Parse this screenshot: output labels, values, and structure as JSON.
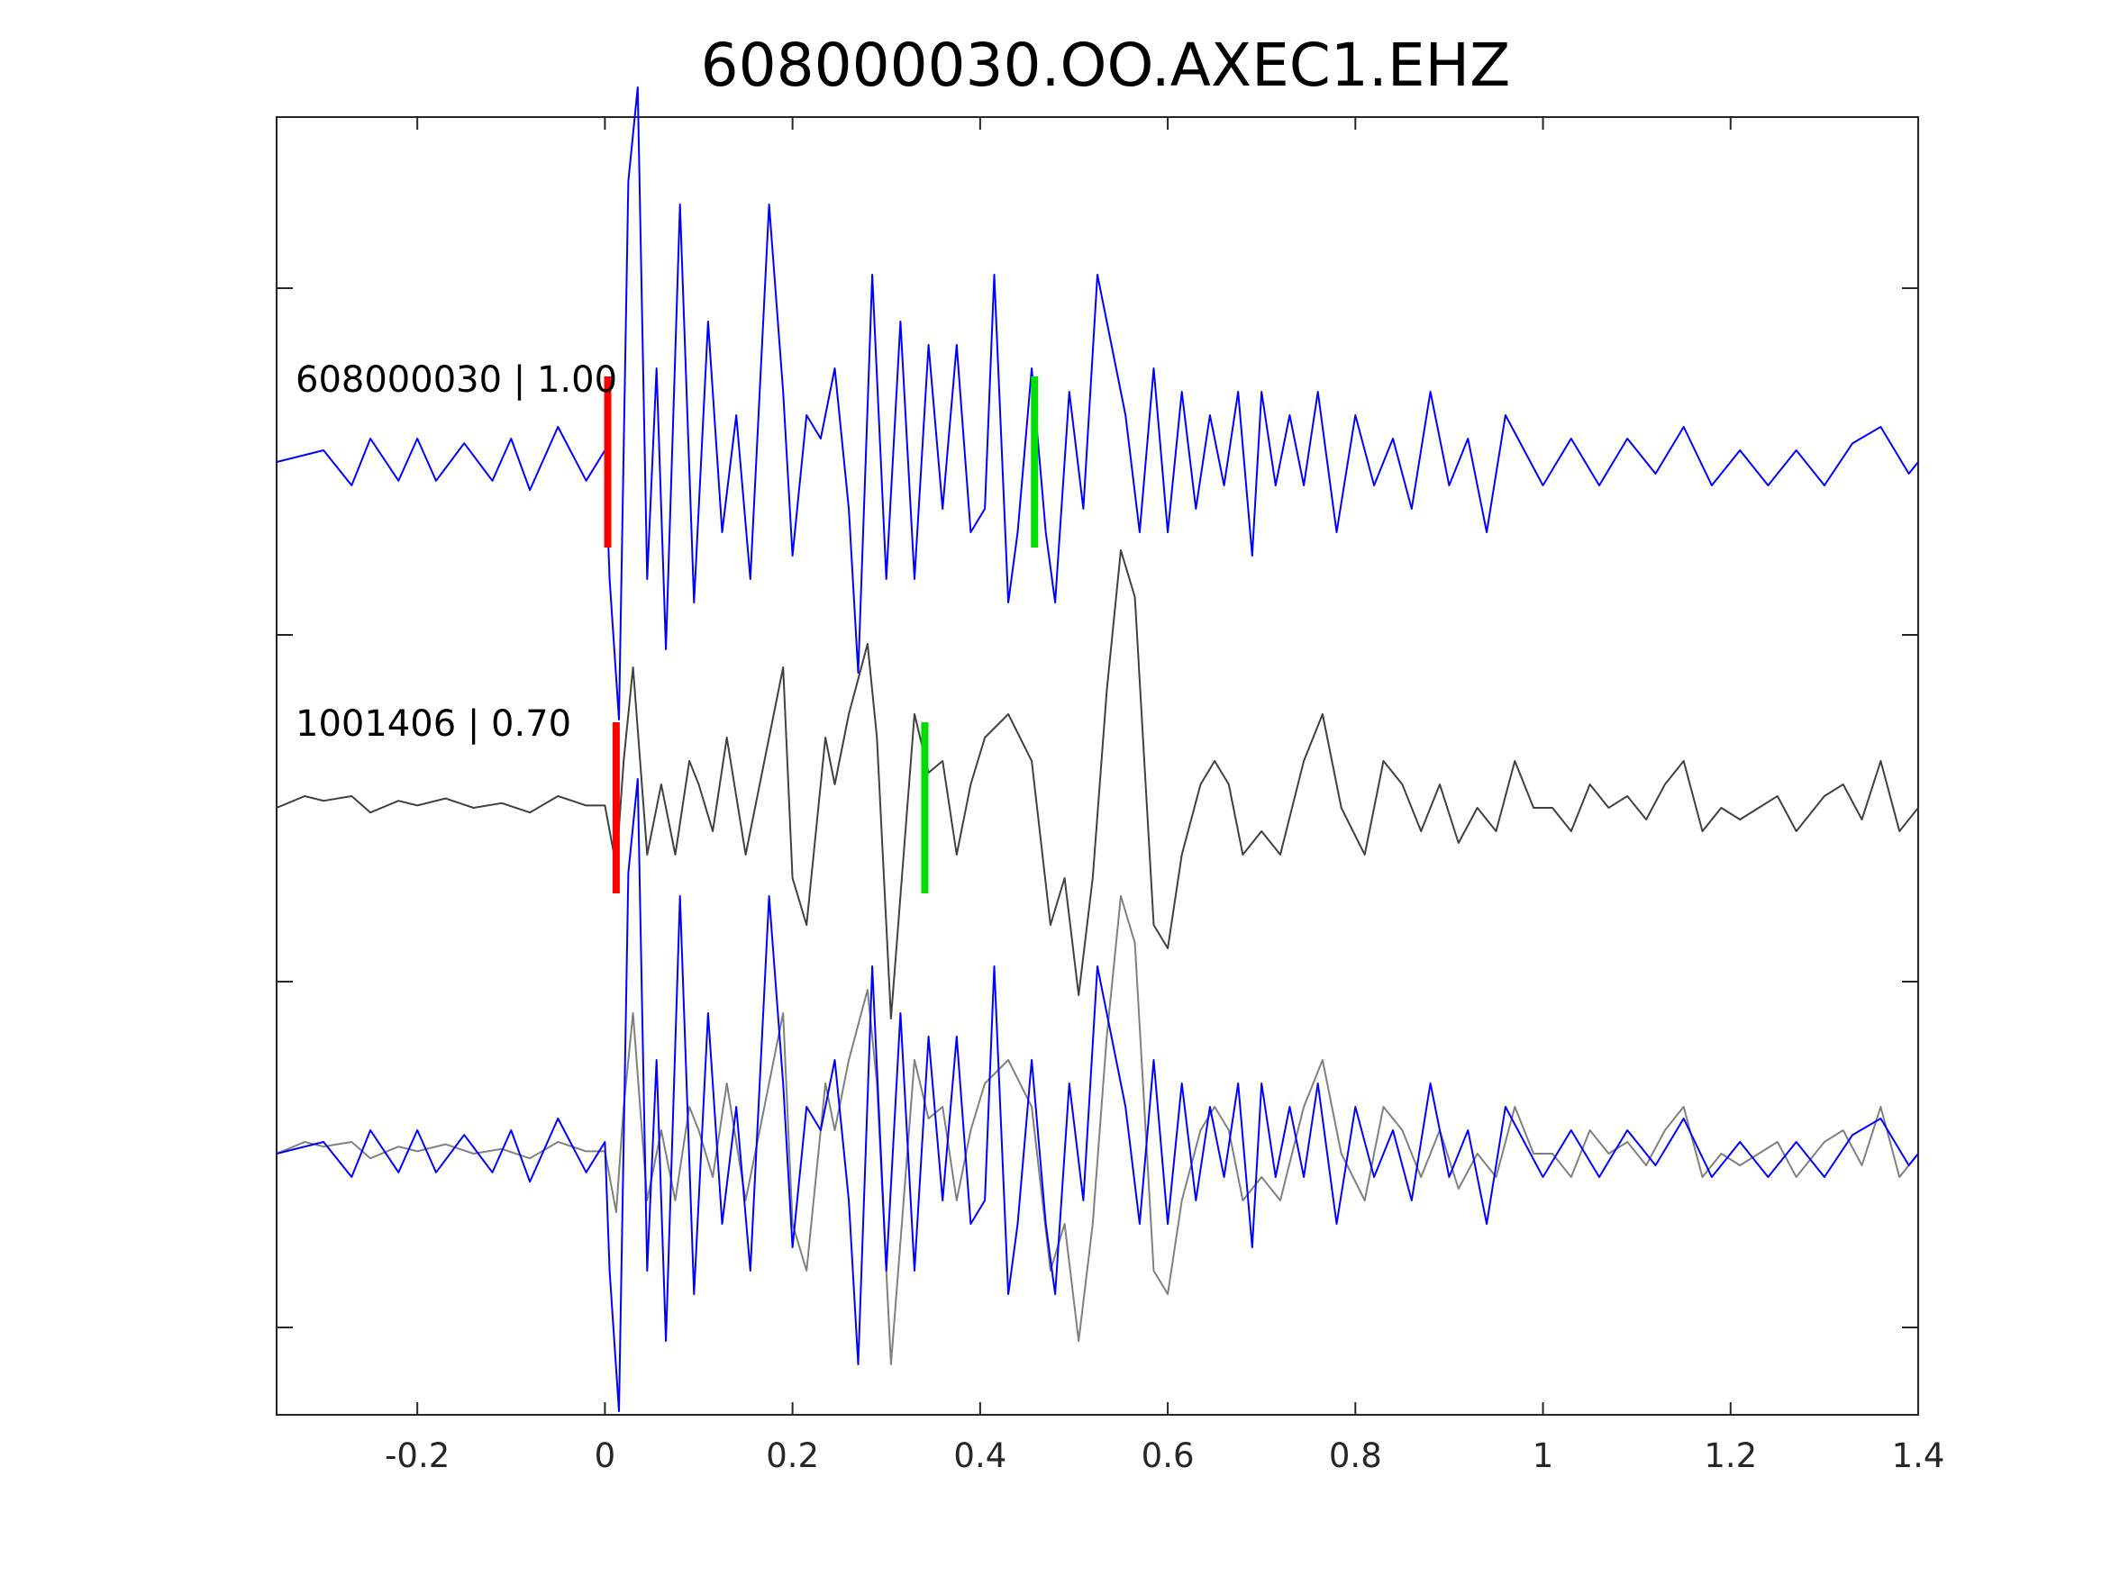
{
  "chart_data": {
    "type": "line",
    "title": "608000030.OO.AXEC1.EHZ",
    "xlabel": "",
    "ylabel": "",
    "xlim": [
      -0.35,
      1.4
    ],
    "x_ticks": [
      -0.2,
      0,
      0.2,
      0.4,
      0.6,
      0.8,
      1,
      1.2,
      1.4
    ],
    "x_tick_labels": [
      "-0.2",
      "0",
      "0.2",
      "0.4",
      "0.6",
      "0.8",
      "1",
      "1.2",
      "1.4"
    ],
    "y_tick_count": 4,
    "grid": false,
    "panels": [
      {
        "label": "608000030 | 1.00",
        "series": [
          {
            "color": "#0000ff",
            "points": [
              [
                -0.35,
                0
              ],
              [
                -0.3,
                0.05
              ],
              [
                -0.27,
                -0.1
              ],
              [
                -0.25,
                0.1
              ],
              [
                -0.22,
                -0.08
              ],
              [
                -0.2,
                0.1
              ],
              [
                -0.18,
                -0.08
              ],
              [
                -0.15,
                0.08
              ],
              [
                -0.12,
                -0.08
              ],
              [
                -0.1,
                0.1
              ],
              [
                -0.08,
                -0.12
              ],
              [
                -0.05,
                0.15
              ],
              [
                -0.02,
                -0.08
              ],
              [
                0,
                0.05
              ],
              [
                0.005,
                -0.5
              ],
              [
                0.015,
                -1.1
              ],
              [
                0.025,
                1.2
              ],
              [
                0.035,
                1.6
              ],
              [
                0.045,
                -0.5
              ],
              [
                0.055,
                0.4
              ],
              [
                0.065,
                -0.8
              ],
              [
                0.08,
                1.1
              ],
              [
                0.095,
                -0.6
              ],
              [
                0.11,
                0.6
              ],
              [
                0.125,
                -0.3
              ],
              [
                0.14,
                0.2
              ],
              [
                0.155,
                -0.5
              ],
              [
                0.175,
                1.1
              ],
              [
                0.19,
                0.3
              ],
              [
                0.2,
                -0.4
              ],
              [
                0.215,
                0.2
              ],
              [
                0.23,
                0.1
              ],
              [
                0.245,
                0.4
              ],
              [
                0.26,
                -0.2
              ],
              [
                0.27,
                -0.9
              ],
              [
                0.285,
                0.8
              ],
              [
                0.3,
                -0.5
              ],
              [
                0.315,
                0.6
              ],
              [
                0.33,
                -0.5
              ],
              [
                0.345,
                0.5
              ],
              [
                0.36,
                -0.2
              ],
              [
                0.375,
                0.5
              ],
              [
                0.39,
                -0.3
              ],
              [
                0.405,
                -0.2
              ],
              [
                0.415,
                0.8
              ],
              [
                0.43,
                -0.6
              ],
              [
                0.44,
                -0.3
              ],
              [
                0.455,
                0.4
              ],
              [
                0.47,
                -0.3
              ],
              [
                0.48,
                -0.6
              ],
              [
                0.495,
                0.3
              ],
              [
                0.51,
                -0.2
              ],
              [
                0.525,
                0.8
              ],
              [
                0.54,
                0.5
              ],
              [
                0.555,
                0.2
              ],
              [
                0.57,
                -0.3
              ],
              [
                0.585,
                0.4
              ],
              [
                0.6,
                -0.3
              ],
              [
                0.615,
                0.3
              ],
              [
                0.63,
                -0.2
              ],
              [
                0.645,
                0.2
              ],
              [
                0.66,
                -0.1
              ],
              [
                0.675,
                0.3
              ],
              [
                0.69,
                -0.4
              ],
              [
                0.7,
                0.3
              ],
              [
                0.715,
                -0.1
              ],
              [
                0.73,
                0.2
              ],
              [
                0.745,
                -0.1
              ],
              [
                0.76,
                0.3
              ],
              [
                0.78,
                -0.3
              ],
              [
                0.8,
                0.2
              ],
              [
                0.82,
                -0.1
              ],
              [
                0.84,
                0.1
              ],
              [
                0.86,
                -0.2
              ],
              [
                0.88,
                0.3
              ],
              [
                0.9,
                -0.1
              ],
              [
                0.92,
                0.1
              ],
              [
                0.94,
                -0.3
              ],
              [
                0.96,
                0.2
              ],
              [
                0.98,
                0.05
              ],
              [
                1.0,
                -0.1
              ],
              [
                1.03,
                0.1
              ],
              [
                1.06,
                -0.1
              ],
              [
                1.09,
                0.1
              ],
              [
                1.12,
                -0.05
              ],
              [
                1.15,
                0.15
              ],
              [
                1.18,
                -0.1
              ],
              [
                1.21,
                0.05
              ],
              [
                1.24,
                -0.1
              ],
              [
                1.27,
                0.05
              ],
              [
                1.3,
                -0.1
              ],
              [
                1.33,
                0.08
              ],
              [
                1.36,
                0.15
              ],
              [
                1.39,
                -0.05
              ],
              [
                1.4,
                0
              ]
            ]
          }
        ],
        "picks": [
          {
            "color": "#ff0000",
            "x": 0.003
          },
          {
            "color": "#00dd00",
            "x": 0.458
          }
        ]
      },
      {
        "label": "1001406 | 0.70",
        "series": [
          {
            "color": "#404040",
            "points": [
              [
                -0.35,
                0
              ],
              [
                -0.32,
                0.05
              ],
              [
                -0.3,
                0.03
              ],
              [
                -0.27,
                0.05
              ],
              [
                -0.25,
                -0.02
              ],
              [
                -0.22,
                0.03
              ],
              [
                -0.2,
                0.01
              ],
              [
                -0.17,
                0.04
              ],
              [
                -0.14,
                0
              ],
              [
                -0.11,
                0.02
              ],
              [
                -0.08,
                -0.02
              ],
              [
                -0.05,
                0.05
              ],
              [
                -0.02,
                0.01
              ],
              [
                0,
                0.01
              ],
              [
                0.012,
                -0.25
              ],
              [
                0.02,
                0.2
              ],
              [
                0.03,
                0.6
              ],
              [
                0.045,
                -0.2
              ],
              [
                0.06,
                0.1
              ],
              [
                0.075,
                -0.2
              ],
              [
                0.09,
                0.2
              ],
              [
                0.1,
                0.1
              ],
              [
                0.115,
                -0.1
              ],
              [
                0.13,
                0.3
              ],
              [
                0.15,
                -0.2
              ],
              [
                0.165,
                0.1
              ],
              [
                0.19,
                0.6
              ],
              [
                0.2,
                -0.3
              ],
              [
                0.215,
                -0.5
              ],
              [
                0.235,
                0.3
              ],
              [
                0.245,
                0.1
              ],
              [
                0.26,
                0.4
              ],
              [
                0.28,
                0.7
              ],
              [
                0.29,
                0.3
              ],
              [
                0.305,
                -0.9
              ],
              [
                0.33,
                0.4
              ],
              [
                0.345,
                0.15
              ],
              [
                0.36,
                0.2
              ],
              [
                0.375,
                -0.2
              ],
              [
                0.39,
                0.1
              ],
              [
                0.405,
                0.3
              ],
              [
                0.43,
                0.4
              ],
              [
                0.455,
                0.2
              ],
              [
                0.475,
                -0.5
              ],
              [
                0.49,
                -0.3
              ],
              [
                0.505,
                -0.8
              ],
              [
                0.52,
                -0.3
              ],
              [
                0.535,
                0.5
              ],
              [
                0.55,
                1.1
              ],
              [
                0.565,
                0.9
              ],
              [
                0.585,
                -0.5
              ],
              [
                0.6,
                -0.6
              ],
              [
                0.615,
                -0.2
              ],
              [
                0.635,
                0.1
              ],
              [
                0.65,
                0.2
              ],
              [
                0.665,
                0.1
              ],
              [
                0.68,
                -0.2
              ],
              [
                0.7,
                -0.1
              ],
              [
                0.72,
                -0.2
              ],
              [
                0.745,
                0.2
              ],
              [
                0.765,
                0.4
              ],
              [
                0.785,
                0
              ],
              [
                0.81,
                -0.2
              ],
              [
                0.83,
                0.2
              ],
              [
                0.85,
                0.1
              ],
              [
                0.87,
                -0.1
              ],
              [
                0.89,
                0.1
              ],
              [
                0.91,
                -0.15
              ],
              [
                0.93,
                0
              ],
              [
                0.95,
                -0.1
              ],
              [
                0.97,
                0.2
              ],
              [
                0.99,
                0
              ],
              [
                1.01,
                0
              ],
              [
                1.03,
                -0.1
              ],
              [
                1.05,
                0.1
              ],
              [
                1.07,
                0
              ],
              [
                1.09,
                0.05
              ],
              [
                1.11,
                -0.05
              ],
              [
                1.13,
                0.1
              ],
              [
                1.15,
                0.2
              ],
              [
                1.17,
                -0.1
              ],
              [
                1.19,
                0
              ],
              [
                1.21,
                -0.05
              ],
              [
                1.23,
                0
              ],
              [
                1.25,
                0.05
              ],
              [
                1.27,
                -0.1
              ],
              [
                1.3,
                0.05
              ],
              [
                1.32,
                0.1
              ],
              [
                1.34,
                -0.05
              ],
              [
                1.36,
                0.2
              ],
              [
                1.38,
                -0.1
              ],
              [
                1.4,
                0
              ]
            ]
          }
        ],
        "picks": [
          {
            "color": "#ff0000",
            "x": 0.012
          },
          {
            "color": "#00dd00",
            "x": 0.341
          }
        ]
      },
      {
        "label": "",
        "series": [
          {
            "color": "#808080",
            "ref": "panel-2"
          },
          {
            "color": "#0000ff",
            "ref": "panel-1"
          }
        ],
        "picks": []
      }
    ]
  }
}
